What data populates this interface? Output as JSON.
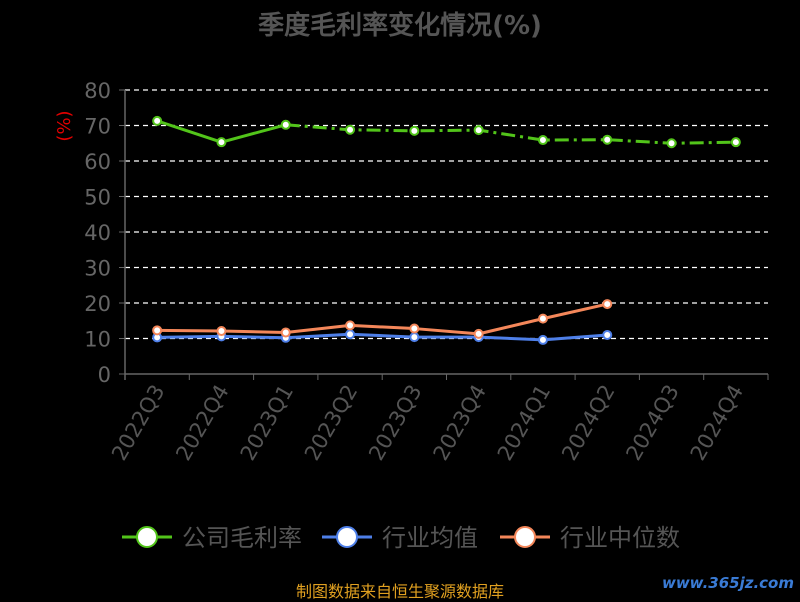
{
  "chart_data": {
    "type": "line",
    "title": "季度毛利率变化情况(%)",
    "ylabel": "(%)",
    "ylim": [
      0,
      80
    ],
    "yticks": [
      0,
      10,
      20,
      30,
      40,
      50,
      60,
      70,
      80
    ],
    "grid": true,
    "legend_position": "bottom",
    "categories": [
      "2022Q3",
      "2022Q4",
      "2023Q1",
      "2023Q2",
      "2023Q3",
      "2023Q4",
      "2024Q1",
      "2024Q2",
      "2024Q3",
      "2024Q4"
    ],
    "series": [
      {
        "name": "公司毛利率",
        "color": "#52c41a",
        "dashed_from_index": 2,
        "values": [
          71.3,
          65.3,
          70.2,
          68.8,
          68.5,
          68.7,
          65.9,
          66.0,
          65.0,
          65.3
        ]
      },
      {
        "name": "行业均值",
        "color": "#4e7fe8",
        "values": [
          10.3,
          10.6,
          10.2,
          11.2,
          10.4,
          10.4,
          9.6,
          11.0,
          null,
          null
        ]
      },
      {
        "name": "行业中位数",
        "color": "#f4875a",
        "values": [
          12.3,
          12.1,
          11.7,
          13.7,
          12.8,
          11.3,
          15.6,
          19.7,
          null,
          null
        ]
      }
    ]
  },
  "footer": "制图数据来自恒生聚源数据库",
  "watermark": "www.365jz.com"
}
